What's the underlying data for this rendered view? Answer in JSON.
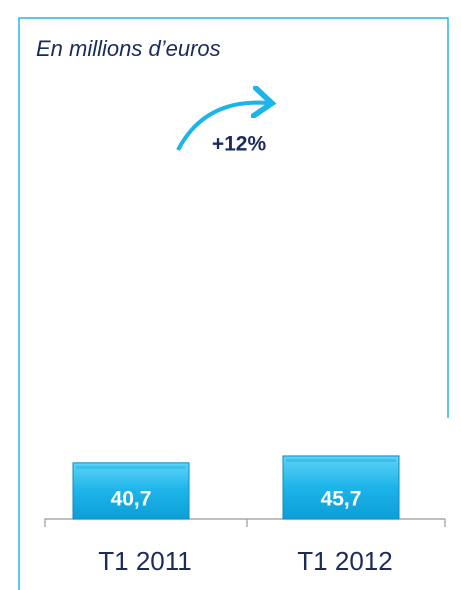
{
  "chart_data": {
    "type": "bar",
    "subtitle": "En millions d’euros",
    "annotation": "+12%",
    "categories": [
      "T1 2011",
      "T1 2012"
    ],
    "values": [
      40.7,
      45.7
    ],
    "value_labels": [
      "40,7",
      "45,7"
    ],
    "color": "#1cb4ea"
  }
}
